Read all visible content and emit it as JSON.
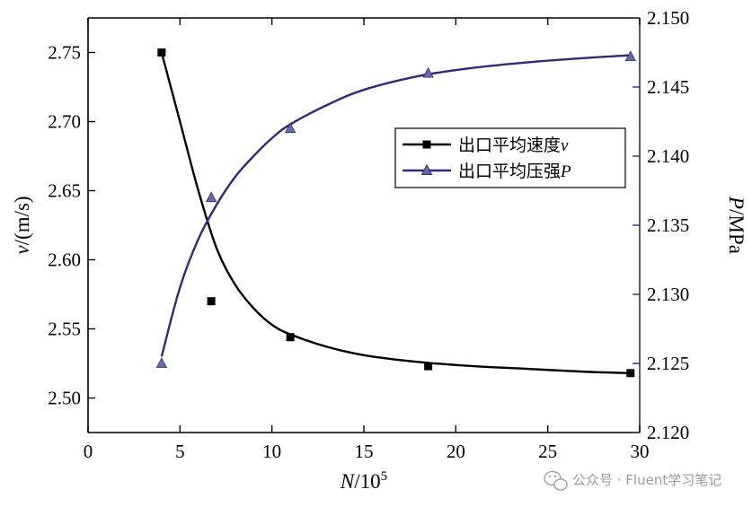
{
  "chart_data": {
    "type": "line",
    "x": {
      "label": "N/10",
      "label_italic_part": "N",
      "label_rest": "/10",
      "label_superscript": "5",
      "range": [
        0,
        30
      ],
      "ticks": [
        0,
        5,
        10,
        15,
        20,
        25,
        30
      ],
      "tick_labels": [
        "0",
        "5",
        "10",
        "15",
        "20",
        "25",
        "30"
      ]
    },
    "y_left": {
      "label_italic_part": "v",
      "label_rest": "/(m/s)",
      "range": [
        2.475,
        2.775
      ],
      "ticks": [
        2.5,
        2.55,
        2.6,
        2.65,
        2.7,
        2.75
      ],
      "tick_labels": [
        "2.50",
        "2.55",
        "2.60",
        "2.65",
        "2.70",
        "2.75"
      ]
    },
    "y_right": {
      "label_italic_part": "P",
      "label_rest": "/MPa",
      "range": [
        2.12,
        2.15
      ],
      "ticks": [
        2.12,
        2.125,
        2.13,
        2.135,
        2.14,
        2.145,
        2.15
      ],
      "tick_labels": [
        "2.120",
        "2.125",
        "2.130",
        "2.135",
        "2.140",
        "2.145",
        "2.150"
      ]
    },
    "series": [
      {
        "name": "出口平均速度v",
        "name_plain": "出口平均速度",
        "name_italic": "v",
        "axis": "left",
        "marker": "square",
        "color": "#000000",
        "points": [
          [
            4,
            2.75
          ],
          [
            6.7,
            2.57
          ],
          [
            11,
            2.544
          ],
          [
            18.5,
            2.523
          ],
          [
            29.5,
            2.518
          ]
        ],
        "fit_curve": [
          [
            4,
            2.75
          ],
          [
            5,
            2.7
          ],
          [
            6,
            2.65
          ],
          [
            7,
            2.608
          ],
          [
            8,
            2.582
          ],
          [
            9,
            2.565
          ],
          [
            10,
            2.553
          ],
          [
            11,
            2.546
          ],
          [
            13,
            2.537
          ],
          [
            15,
            2.531
          ],
          [
            18,
            2.526
          ],
          [
            21,
            2.523
          ],
          [
            24,
            2.521
          ],
          [
            27,
            2.519
          ],
          [
            29.5,
            2.518
          ]
        ]
      },
      {
        "name": "出口平均压强P",
        "name_plain": "出口平均压强",
        "name_italic": "P",
        "axis": "right",
        "marker": "triangle",
        "color": "#2e2c78",
        "points": [
          [
            4,
            2.125
          ],
          [
            6.7,
            2.137
          ],
          [
            11,
            2.142
          ],
          [
            18.5,
            2.146
          ],
          [
            29.5,
            2.1472
          ]
        ],
        "fit_curve": [
          [
            4,
            2.1255
          ],
          [
            5,
            2.1305
          ],
          [
            6,
            2.134
          ],
          [
            7,
            2.1365
          ],
          [
            8,
            2.1385
          ],
          [
            9,
            2.14
          ],
          [
            10,
            2.1413
          ],
          [
            11,
            2.1423
          ],
          [
            13,
            2.1437
          ],
          [
            15,
            2.1448
          ],
          [
            18,
            2.1458
          ],
          [
            21,
            2.1464
          ],
          [
            24,
            2.1468
          ],
          [
            27,
            2.1471
          ],
          [
            29.5,
            2.1473
          ]
        ]
      }
    ],
    "legend_position": "upper-right-inside",
    "grid": false
  },
  "watermark": {
    "text": "公众号 · Fluent学习笔记",
    "icon": "wechat-icon"
  }
}
